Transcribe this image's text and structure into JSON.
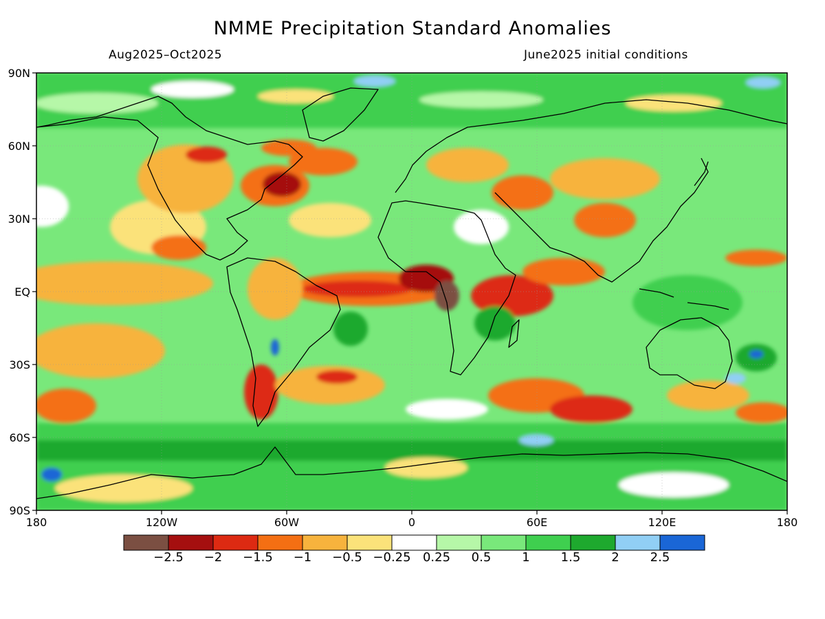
{
  "title": "NMME Precipitation Standard Anomalies",
  "period": "Aug2025–Oct2025",
  "initial_conditions": "June2025 initial conditions",
  "lat_labels": [
    "90N",
    "60N",
    "30N",
    "EQ",
    "30S",
    "60S",
    "90S"
  ],
  "lon_labels": [
    "180",
    "120W",
    "60W",
    "0",
    "60E",
    "120E",
    "180"
  ],
  "colorbar": {
    "colors": [
      "#7b4f42",
      "#a50f0f",
      "#dd2a12",
      "#f46f13",
      "#f7b33d",
      "#fbe27a",
      "#ffffff",
      "#b6f7a8",
      "#79e87b",
      "#3fcf4f",
      "#1ea92e",
      "#91cff5",
      "#1a66d6"
    ],
    "tick_labels": [
      "−2.5",
      "−2",
      "−1.5",
      "−1",
      "−0.5",
      "−0.25",
      "0.25",
      "0.5",
      "1",
      "1.5",
      "2",
      "2.5"
    ]
  }
}
